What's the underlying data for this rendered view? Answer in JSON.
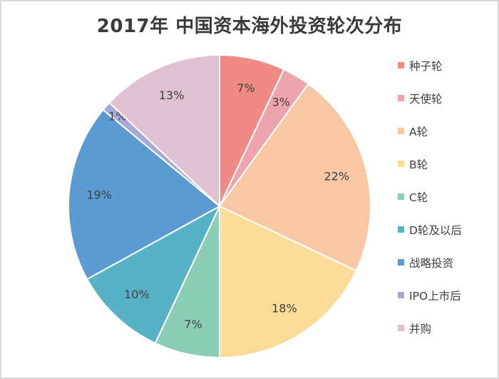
{
  "chart_data": {
    "type": "pie",
    "title": "2017年 中国资本海外投资轮次分布",
    "legend_position": "right",
    "slices": [
      {
        "name": "种子轮",
        "value": 7,
        "label": "7%",
        "color": "#f08a84"
      },
      {
        "name": "天使轮",
        "value": 3,
        "label": "3%",
        "color": "#eea4ad"
      },
      {
        "name": "A轮",
        "value": 22,
        "label": "22%",
        "color": "#f8c8a5"
      },
      {
        "name": "B轮",
        "value": 18,
        "label": "18%",
        "color": "#fbdc97"
      },
      {
        "name": "C轮",
        "value": 7,
        "label": "7%",
        "color": "#8ccdb5"
      },
      {
        "name": "D轮及以后",
        "value": 10,
        "label": "10%",
        "color": "#58b2c6"
      },
      {
        "name": "战略投资",
        "value": 19,
        "label": "19%",
        "color": "#5c9bd2"
      },
      {
        "name": "IPO上市后",
        "value": 1,
        "label": "1%",
        "color": "#a8a9d4"
      },
      {
        "name": "并购",
        "value": 13,
        "label": "13%",
        "color": "#dfc1d2"
      }
    ]
  }
}
